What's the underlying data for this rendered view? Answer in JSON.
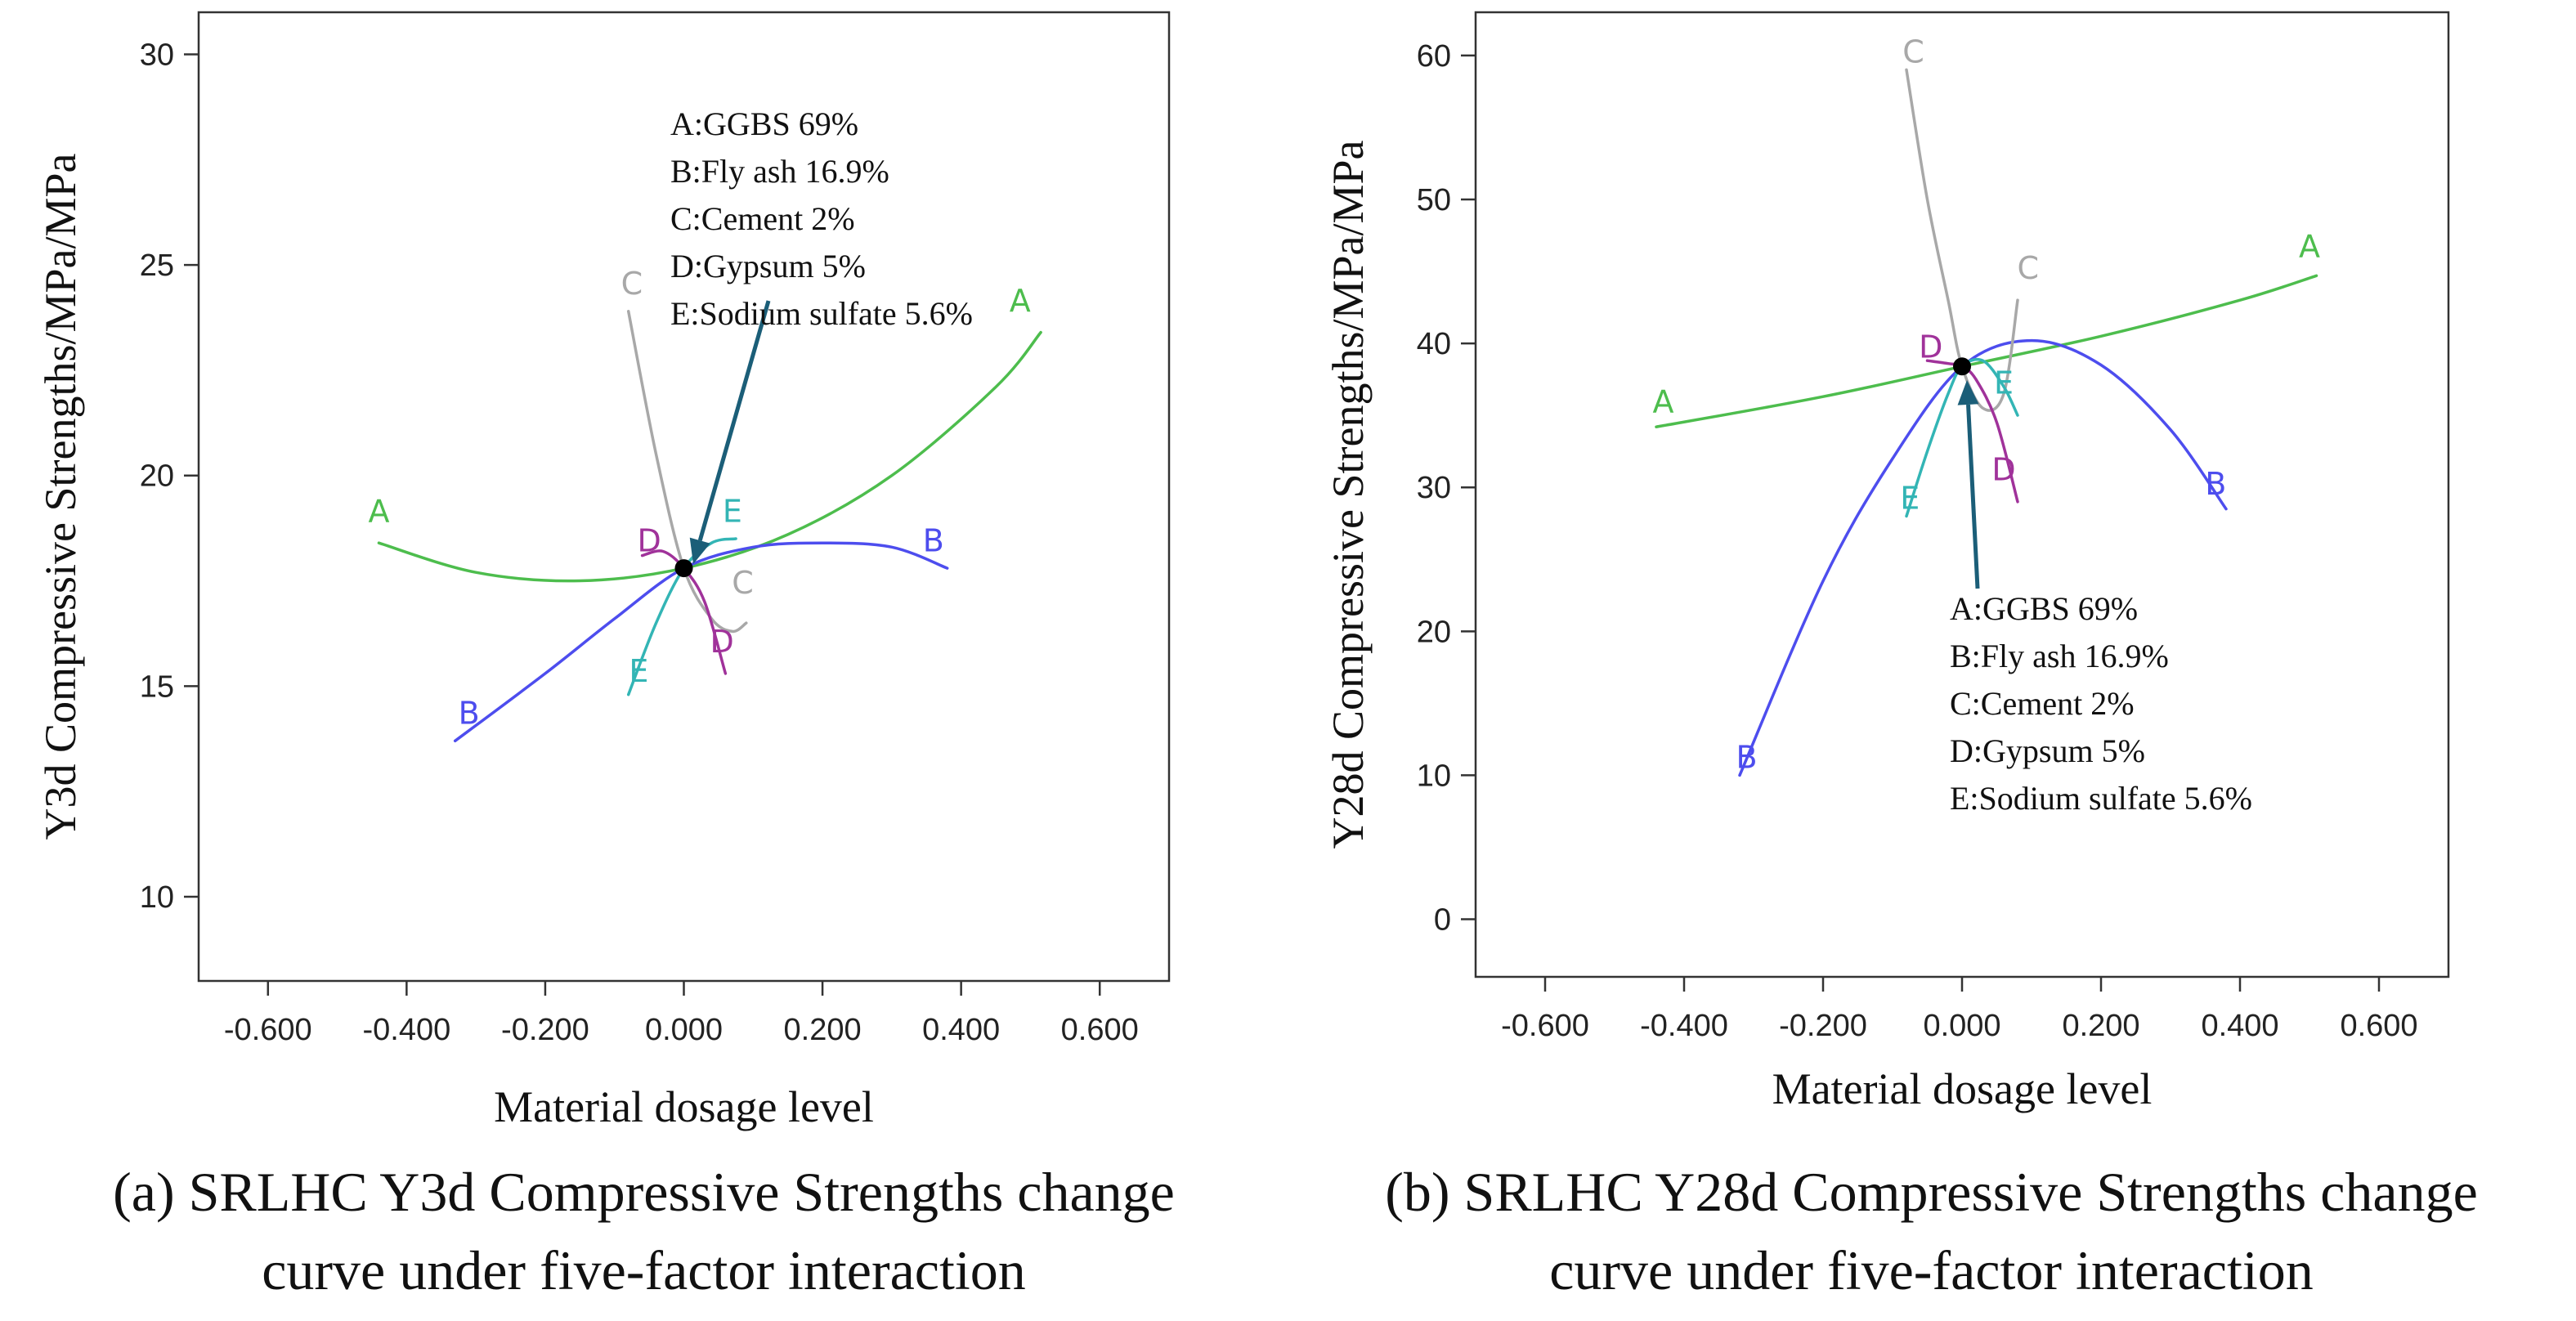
{
  "colors": {
    "A": "#4dbd4d",
    "B": "#4d4dee",
    "C": "#a8a8a8",
    "D": "#a0329a",
    "E": "#33b5b5",
    "arrow": "#1b5e78"
  },
  "chart_data": [
    {
      "id": "a",
      "type": "line",
      "xlabel": "Material dosage level",
      "ylabel": "Y3d Compressive Strengths/MPa/MPa",
      "xlim": [
        -0.7,
        0.7
      ],
      "ylim": [
        8,
        31
      ],
      "xticks": [
        -0.6,
        -0.4,
        -0.2,
        0,
        0.2,
        0.4,
        0.6
      ],
      "xtick_labels": [
        "-0.600",
        "-0.400",
        "-0.200",
        "0.000",
        "0.200",
        "0.400",
        "0.600"
      ],
      "yticks": [
        10,
        15,
        20,
        25,
        30
      ],
      "ytick_labels": [
        "10",
        "15",
        "20",
        "25",
        "30"
      ],
      "reference_point": {
        "x": 0,
        "y": 17.8
      },
      "series": [
        {
          "name": "A",
          "x": [
            -0.44,
            -0.3,
            -0.15,
            0,
            0.15,
            0.3,
            0.45,
            0.515
          ],
          "y": [
            18.4,
            17.7,
            17.5,
            17.8,
            18.6,
            20.0,
            22.1,
            23.4
          ]
        },
        {
          "name": "B",
          "x": [
            -0.33,
            -0.2,
            -0.1,
            0,
            0.1,
            0.2,
            0.3,
            0.38
          ],
          "y": [
            13.7,
            15.3,
            16.6,
            17.8,
            18.3,
            18.4,
            18.3,
            17.8
          ]
        },
        {
          "name": "C",
          "x": [
            -0.08,
            -0.04,
            0,
            0.04,
            0.07,
            0.09
          ],
          "y": [
            23.9,
            20.5,
            17.8,
            16.6,
            16.3,
            16.5
          ]
        },
        {
          "name": "D",
          "x": [
            -0.06,
            -0.03,
            0,
            0.03,
            0.06
          ],
          "y": [
            18.1,
            18.2,
            17.8,
            17.0,
            15.3
          ]
        },
        {
          "name": "E",
          "x": [
            -0.08,
            -0.04,
            0,
            0.04,
            0.075
          ],
          "y": [
            14.8,
            16.5,
            17.8,
            18.4,
            18.5
          ]
        }
      ],
      "curve_labels": [
        {
          "series": "A",
          "text": "A",
          "x": -0.44,
          "y": 18.9
        },
        {
          "series": "A",
          "text": "A",
          "x": 0.485,
          "y": 23.9
        },
        {
          "series": "B",
          "text": "B",
          "x": -0.31,
          "y": 14.1
        },
        {
          "series": "B",
          "text": "B",
          "x": 0.36,
          "y": 18.2
        },
        {
          "series": "C",
          "text": "C",
          "x": -0.075,
          "y": 24.3
        },
        {
          "series": "C",
          "text": "C",
          "x": 0.085,
          "y": 17.2
        },
        {
          "series": "D",
          "text": "D",
          "x": -0.05,
          "y": 18.2
        },
        {
          "series": "D",
          "text": "D",
          "x": 0.055,
          "y": 15.8
        },
        {
          "series": "E",
          "text": "E",
          "x": -0.065,
          "y": 15.1
        },
        {
          "series": "E",
          "text": "E",
          "x": 0.07,
          "y": 18.9
        }
      ],
      "legend": [
        "A:GGBS 69%",
        "B:Fly ash 16.9%",
        "C:Cement 2%",
        "D:Gypsum 5%",
        "E:Sodium sulfate 5.6%"
      ],
      "caption": [
        "(a) SRLHC Y3d Compressive Strengths change",
        "curve under five-factor interaction"
      ]
    },
    {
      "id": "b",
      "type": "line",
      "xlabel": "Material dosage level",
      "ylabel": "Y28d Compressive Strengths/MPa/MPa",
      "xlim": [
        -0.7,
        0.7
      ],
      "ylim": [
        -4,
        63
      ],
      "xticks": [
        -0.6,
        -0.4,
        -0.2,
        0,
        0.2,
        0.4,
        0.6
      ],
      "xtick_labels": [
        "-0.600",
        "-0.400",
        "-0.200",
        "0.000",
        "0.200",
        "0.400",
        "0.600"
      ],
      "yticks": [
        0,
        10,
        20,
        30,
        40,
        50,
        60
      ],
      "ytick_labels": [
        "0",
        "10",
        "20",
        "30",
        "40",
        "50",
        "60"
      ],
      "reference_point": {
        "x": 0,
        "y": 38.4
      },
      "series": [
        {
          "name": "A",
          "x": [
            -0.44,
            -0.2,
            0,
            0.2,
            0.4,
            0.51
          ],
          "y": [
            34.2,
            36.3,
            38.4,
            40.5,
            43.0,
            44.7
          ]
        },
        {
          "name": "B",
          "x": [
            -0.32,
            -0.2,
            -0.1,
            0,
            0.1,
            0.2,
            0.3,
            0.38
          ],
          "y": [
            10.0,
            23.5,
            32.0,
            38.4,
            40.2,
            38.5,
            34.0,
            28.5
          ]
        },
        {
          "name": "C",
          "x": [
            -0.08,
            -0.05,
            -0.02,
            0,
            0.03,
            0.06,
            0.08
          ],
          "y": [
            59.0,
            50.0,
            43.0,
            38.4,
            35.5,
            36.5,
            43.0
          ]
        },
        {
          "name": "D",
          "x": [
            -0.05,
            -0.02,
            0,
            0.02,
            0.05,
            0.08
          ],
          "y": [
            38.8,
            38.6,
            38.4,
            37.5,
            34.5,
            29.0
          ]
        },
        {
          "name": "E",
          "x": [
            -0.08,
            -0.05,
            -0.02,
            0,
            0.03,
            0.06,
            0.08
          ],
          "y": [
            28.0,
            32.5,
            36.5,
            38.4,
            38.8,
            37.0,
            35.0
          ]
        }
      ],
      "curve_labels": [
        {
          "series": "A",
          "text": "A",
          "x": -0.43,
          "y": 35.2
        },
        {
          "series": "A",
          "text": "A",
          "x": 0.5,
          "y": 46.0
        },
        {
          "series": "B",
          "text": "B",
          "x": -0.31,
          "y": 10.5
        },
        {
          "series": "B",
          "text": "B",
          "x": 0.365,
          "y": 29.5
        },
        {
          "series": "C",
          "text": "C",
          "x": -0.07,
          "y": 59.5
        },
        {
          "series": "C",
          "text": "C",
          "x": 0.095,
          "y": 44.5
        },
        {
          "series": "D",
          "text": "D",
          "x": -0.045,
          "y": 39.0
        },
        {
          "series": "D",
          "text": "D",
          "x": 0.06,
          "y": 30.5
        },
        {
          "series": "E",
          "text": "E",
          "x": -0.075,
          "y": 28.5
        },
        {
          "series": "E",
          "text": "E",
          "x": 0.06,
          "y": 36.5
        }
      ],
      "legend": [
        "A:GGBS 69%",
        "B:Fly ash 16.9%",
        "C:Cement 2%",
        "D:Gypsum 5%",
        "E:Sodium sulfate 5.6%"
      ],
      "caption": [
        "(b) SRLHC Y28d Compressive Strengths change",
        "curve under five-factor interaction"
      ]
    }
  ]
}
